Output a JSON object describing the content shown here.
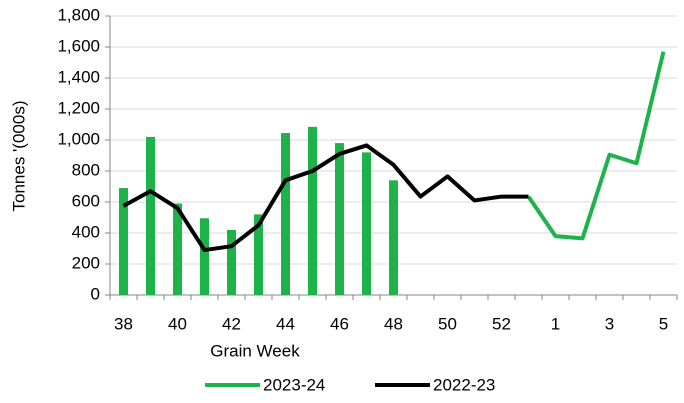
{
  "chart_data": {
    "type": "combo",
    "categories": [
      "38",
      null,
      "40",
      null,
      "42",
      null,
      "44",
      null,
      "46",
      null,
      "48",
      null,
      "50",
      null,
      "52",
      null,
      "1",
      null,
      "3",
      null,
      "5"
    ],
    "x_label": "Grain Week",
    "y_label": "Tonnes '(000s)",
    "ylim": [
      0,
      1800
    ],
    "yticks": [
      0,
      {
        "value": 200,
        "label": "200"
      },
      {
        "value": 400,
        "label": "400"
      },
      {
        "value": 600,
        "label": "600"
      },
      {
        "value": 800,
        "label": "800"
      },
      {
        "value": 1000,
        "label": "1,000"
      },
      {
        "value": 1200,
        "label": "1,200"
      },
      {
        "value": 1400,
        "label": "1,400"
      },
      {
        "value": 1600,
        "label": "1,600"
      },
      {
        "value": 1800,
        "label": "1,800"
      }
    ],
    "grid": true,
    "series": [
      {
        "name": "2023-24",
        "color": "#1db34a",
        "segments": [
          {
            "type": "bar",
            "values": [
              690,
              1020,
              590,
              495,
              420,
              520,
              1045,
              1085,
              980,
              920,
              740,
              null,
              null,
              null,
              null,
              null,
              null,
              null,
              null,
              null,
              null
            ]
          },
          {
            "type": "line",
            "values": [
              null,
              null,
              null,
              null,
              null,
              null,
              null,
              null,
              null,
              null,
              null,
              null,
              null,
              null,
              null,
              635,
              380,
              365,
              905,
              850,
              1570
            ]
          }
        ]
      },
      {
        "name": "2022-23",
        "color": "#000000",
        "segments": [
          {
            "type": "line",
            "values": [
              575,
              670,
              560,
              290,
              315,
              450,
              740,
              800,
              910,
              965,
              840,
              635,
              765,
              610,
              635,
              635,
              null,
              null,
              null,
              null,
              null
            ]
          }
        ]
      }
    ]
  }
}
